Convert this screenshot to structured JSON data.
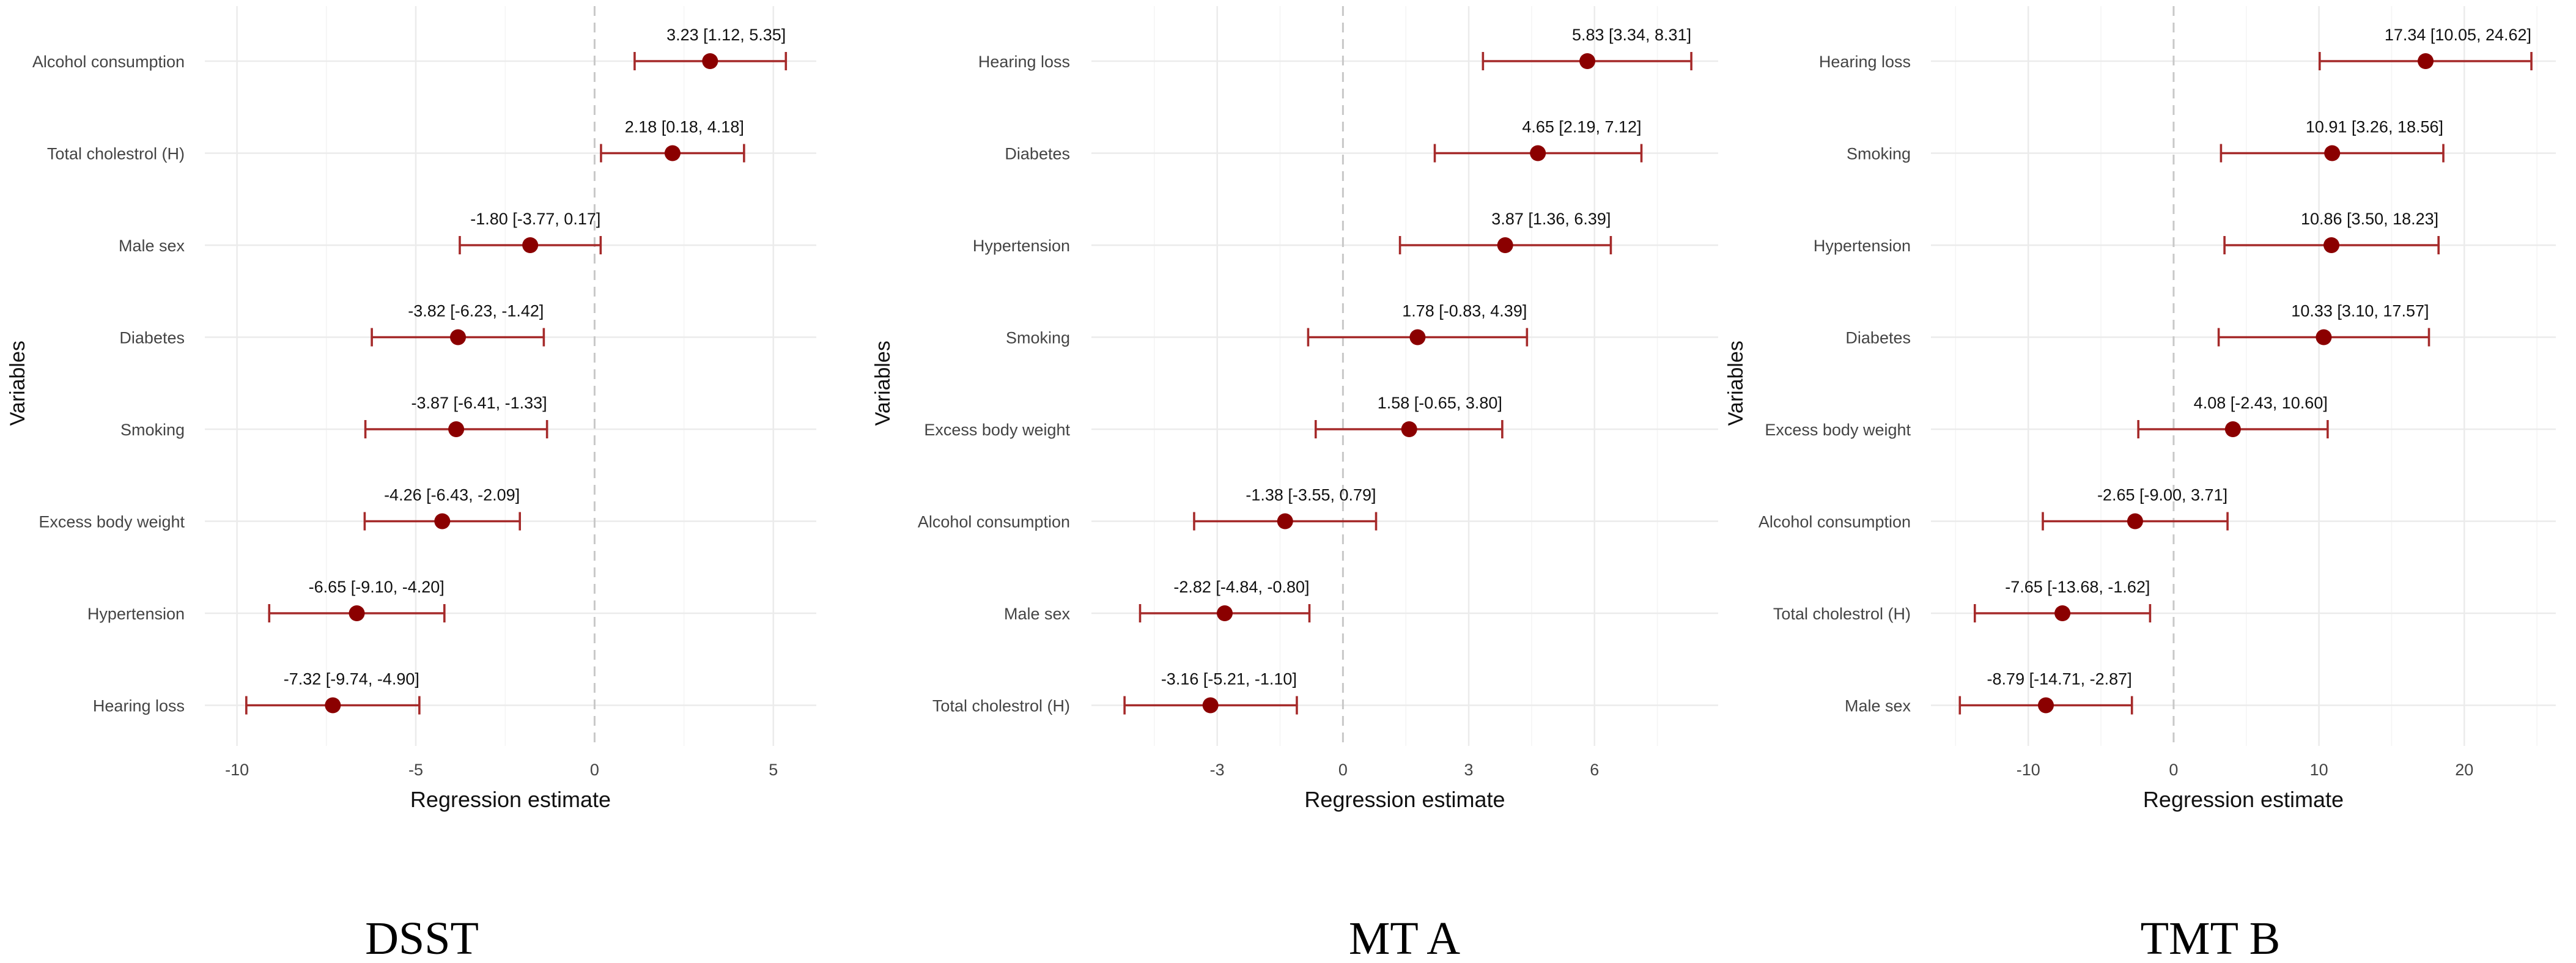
{
  "chart_data": [
    {
      "type": "forest",
      "title": "DSST",
      "xlabel": "Regression estimate",
      "ylabel": "Variables",
      "xlim": [
        -10.9,
        6.2
      ],
      "xticks": [
        -10,
        -5,
        0,
        5
      ],
      "grid": true,
      "reference_line": 0,
      "rows": [
        {
          "variable": "Alcohol consumption",
          "estimate": 3.23,
          "lower": 1.12,
          "upper": 5.35,
          "label": "3.23 [1.12, 5.35]"
        },
        {
          "variable": "Total cholestrol (H)",
          "estimate": 2.18,
          "lower": 0.18,
          "upper": 4.18,
          "label": "2.18 [0.18, 4.18]"
        },
        {
          "variable": "Male sex",
          "estimate": -1.8,
          "lower": -3.77,
          "upper": 0.17,
          "label": "-1.80 [-3.77, 0.17]"
        },
        {
          "variable": "Diabetes",
          "estimate": -3.82,
          "lower": -6.23,
          "upper": -1.42,
          "label": "-3.82 [-6.23, -1.42]"
        },
        {
          "variable": "Smoking",
          "estimate": -3.87,
          "lower": -6.41,
          "upper": -1.33,
          "label": "-3.87 [-6.41, -1.33]"
        },
        {
          "variable": "Excess body weight",
          "estimate": -4.26,
          "lower": -6.43,
          "upper": -2.09,
          "label": "-4.26 [-6.43, -2.09]"
        },
        {
          "variable": "Hypertension",
          "estimate": -6.65,
          "lower": -9.1,
          "upper": -4.2,
          "label": "-6.65 [-9.10, -4.20]"
        },
        {
          "variable": "Hearing loss",
          "estimate": -7.32,
          "lower": -9.74,
          "upper": -4.9,
          "label": "-7.32 [-9.74, -4.90]"
        }
      ]
    },
    {
      "type": "forest",
      "title": "MT A",
      "xlabel": "Regression estimate",
      "ylabel": "Variables",
      "xlim": [
        -6.0,
        8.95
      ],
      "xticks": [
        -3,
        0,
        3,
        6
      ],
      "grid": true,
      "reference_line": 0,
      "rows": [
        {
          "variable": "Hearing loss",
          "estimate": 5.83,
          "lower": 3.34,
          "upper": 8.31,
          "label": "5.83 [3.34, 8.31]"
        },
        {
          "variable": "Diabetes",
          "estimate": 4.65,
          "lower": 2.19,
          "upper": 7.12,
          "label": "4.65 [2.19, 7.12]"
        },
        {
          "variable": "Hypertension",
          "estimate": 3.87,
          "lower": 1.36,
          "upper": 6.39,
          "label": "3.87 [1.36, 6.39]"
        },
        {
          "variable": "Smoking",
          "estimate": 1.78,
          "lower": -0.83,
          "upper": 4.39,
          "label": "1.78 [-0.83, 4.39]"
        },
        {
          "variable": "Excess body weight",
          "estimate": 1.58,
          "lower": -0.65,
          "upper": 3.8,
          "label": "1.58 [-0.65, 3.80]"
        },
        {
          "variable": "Alcohol consumption",
          "estimate": -1.38,
          "lower": -3.55,
          "upper": 0.79,
          "label": "-1.38 [-3.55, 0.79]"
        },
        {
          "variable": "Male sex",
          "estimate": -2.82,
          "lower": -4.84,
          "upper": -0.8,
          "label": "-2.82 [-4.84, -0.80]"
        },
        {
          "variable": "Total cholestrol (H)",
          "estimate": -3.16,
          "lower": -5.21,
          "upper": -1.1,
          "label": "-3.16 [-5.21, -1.10]"
        }
      ]
    },
    {
      "type": "forest",
      "title": "TMT B",
      "xlabel": "Regression estimate",
      "ylabel": "Variables",
      "xlim": [
        -16.7,
        26.3
      ],
      "xticks": [
        -10,
        0,
        10,
        20
      ],
      "grid": true,
      "reference_line": 0,
      "rows": [
        {
          "variable": "Hearing loss",
          "estimate": 17.34,
          "lower": 10.05,
          "upper": 24.62,
          "label": "17.34 [10.05, 24.62]"
        },
        {
          "variable": "Smoking",
          "estimate": 10.91,
          "lower": 3.26,
          "upper": 18.56,
          "label": "10.91 [3.26, 18.56]"
        },
        {
          "variable": "Hypertension",
          "estimate": 10.86,
          "lower": 3.5,
          "upper": 18.23,
          "label": "10.86 [3.50, 18.23]"
        },
        {
          "variable": "Diabetes",
          "estimate": 10.33,
          "lower": 3.1,
          "upper": 17.57,
          "label": "10.33 [3.10, 17.57]"
        },
        {
          "variable": "Excess body weight",
          "estimate": 4.08,
          "lower": -2.43,
          "upper": 10.6,
          "label": "4.08 [-2.43, 10.60]"
        },
        {
          "variable": "Alcohol consumption",
          "estimate": -2.65,
          "lower": -9.0,
          "upper": 3.71,
          "label": "-2.65 [-9.00, 3.71]"
        },
        {
          "variable": "Total cholestrol (H)",
          "estimate": -7.65,
          "lower": -13.68,
          "upper": -1.62,
          "label": "-7.65 [-13.68, -1.62]"
        },
        {
          "variable": "Male sex",
          "estimate": -8.79,
          "lower": -14.71,
          "upper": -2.87,
          "label": "-8.79 [-14.71, -2.87]"
        }
      ]
    }
  ],
  "colors": {
    "point": "#8b0000",
    "interval": "#a52a2a",
    "zero_line": "#c8c8c8",
    "grid": "#ebebeb"
  }
}
